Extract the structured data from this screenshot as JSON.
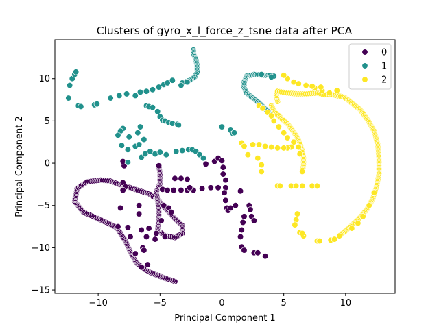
{
  "chart_data": {
    "type": "scatter",
    "title": "Clusters of gyro_x_l_force_z_tsne data after PCA",
    "xlabel": "Principal Component 1",
    "ylabel": "Principal Component 2",
    "xlim": [
      -13.5,
      14.0
    ],
    "ylim": [
      -15.4,
      14.6
    ],
    "xticks": [
      -10,
      -5,
      0,
      5,
      10
    ],
    "yticks": [
      -15,
      -10,
      -5,
      0,
      5,
      10
    ],
    "tick_labels_x": [
      "−10",
      "−5",
      "0",
      "5",
      "10"
    ],
    "tick_labels_y": [
      "−15",
      "−10",
      "−5",
      "0",
      "5",
      "10"
    ],
    "grid": false,
    "legend_position": "top-right",
    "series": [
      {
        "name": "0",
        "color": "#440154",
        "paths": [
          [
            [
              -3.8,
              -14.0
            ],
            [
              -4.8,
              -13.5
            ],
            [
              -6.0,
              -12.8
            ],
            [
              -6.9,
              -11.8
            ],
            [
              -7.4,
              -10.5
            ],
            [
              -7.8,
              -9.2
            ],
            [
              -8.5,
              -7.6
            ],
            [
              -9.8,
              -6.7
            ],
            [
              -11.2,
              -5.8
            ],
            [
              -11.9,
              -4.5
            ],
            [
              -11.7,
              -3.0
            ],
            [
              -10.9,
              -2.2
            ],
            [
              -9.8,
              -2.0
            ],
            [
              -9.0,
              -2.1
            ],
            [
              -8.3,
              -2.5
            ],
            [
              -7.6,
              -2.8
            ],
            [
              -6.8,
              -3.2
            ],
            [
              -5.9,
              -3.6
            ],
            [
              -5.2,
              -4.3
            ],
            [
              -4.6,
              -5.3
            ],
            [
              -3.9,
              -6.4
            ],
            [
              -3.2,
              -7.4
            ],
            [
              -3.2,
              -8.3
            ],
            [
              -3.8,
              -8.8
            ],
            [
              -4.6,
              -8.6
            ],
            [
              -5.2,
              -7.9
            ],
            [
              -5.1,
              -6.7
            ],
            [
              -5.1,
              -5.5
            ],
            [
              -5.2,
              -4.3
            ],
            [
              -5.3,
              -3.4
            ],
            [
              -5.0,
              -2.4
            ],
            [
              -5.0,
              -1.2
            ],
            [
              -5.1,
              -0.3
            ]
          ]
        ],
        "points": [
          [
            -8.0,
            -2.3
          ],
          [
            -7.8,
            -2.8
          ],
          [
            -8.0,
            -3.2
          ],
          [
            -7.9,
            -0.3
          ],
          [
            -8.0,
            0.2
          ],
          [
            -7.6,
            -7.6
          ],
          [
            -7.4,
            -8.7
          ],
          [
            -6.5,
            -7.9
          ],
          [
            -6.1,
            -8.7
          ],
          [
            -5.9,
            -7.7
          ],
          [
            -5.3,
            -8.3
          ],
          [
            -5.4,
            -9.0
          ],
          [
            -4.6,
            -8.7
          ],
          [
            -6.4,
            -10.0
          ],
          [
            -6.3,
            -10.3
          ],
          [
            -7.0,
            -10.7
          ],
          [
            -6.5,
            -12.3
          ],
          [
            -6.0,
            -12.0
          ],
          [
            -8.2,
            -5.3
          ],
          [
            -8.4,
            -7.5
          ],
          [
            -6.7,
            -5.0
          ],
          [
            -6.7,
            -6.0
          ],
          [
            -4.7,
            -5.0
          ],
          [
            -4.3,
            -5.3
          ],
          [
            -4.1,
            -5.8
          ],
          [
            -4.9,
            -6.8
          ],
          [
            -4.8,
            -3.1
          ],
          [
            -4.4,
            -3.2
          ],
          [
            -3.9,
            -3.2
          ],
          [
            -3.3,
            -3.2
          ],
          [
            -2.8,
            -3.2
          ],
          [
            -2.3,
            -3.2
          ],
          [
            -1.6,
            -3.0
          ],
          [
            -0.9,
            -2.9
          ],
          [
            -0.3,
            -2.9
          ],
          [
            0.3,
            -2.9
          ],
          [
            -3.8,
            -1.8
          ],
          [
            -3.3,
            -1.8
          ],
          [
            -2.8,
            -1.9
          ],
          [
            -2.6,
            -2.9
          ],
          [
            -1.3,
            -0.1
          ],
          [
            -0.6,
            0.2
          ],
          [
            -0.3,
            0.6
          ],
          [
            0.0,
            0.3
          ],
          [
            0.1,
            -0.5
          ],
          [
            0.1,
            -1.3
          ],
          [
            0.3,
            -2.0
          ],
          [
            0.2,
            -3.5
          ],
          [
            0.3,
            -4.4
          ],
          [
            0.4,
            -5.3
          ],
          [
            0.5,
            -5.6
          ],
          [
            0.7,
            -5.3
          ],
          [
            1.1,
            -5.0
          ],
          [
            1.5,
            -3.3
          ],
          [
            1.8,
            -6.3
          ],
          [
            1.7,
            -7.0
          ],
          [
            1.6,
            -7.9
          ],
          [
            1.5,
            -8.7
          ],
          [
            1.6,
            -9.9
          ],
          [
            1.8,
            -10.3
          ],
          [
            2.2,
            -5.0
          ],
          [
            2.3,
            -5.5
          ],
          [
            2.4,
            -6.3
          ],
          [
            2.6,
            -6.8
          ],
          [
            2.6,
            -10.6
          ],
          [
            2.9,
            -10.6
          ],
          [
            3.5,
            -11.0
          ]
        ]
      },
      {
        "name": "1",
        "color": "#21918c",
        "paths": [
          [
            [
              -2.3,
              13.4
            ],
            [
              -2.3,
              12.9
            ],
            [
              -2.1,
              12.3
            ],
            [
              -2.0,
              11.5
            ],
            [
              -2.0,
              10.7
            ],
            [
              -2.2,
              10.2
            ],
            [
              -2.6,
              9.8
            ],
            [
              -3.2,
              9.5
            ]
          ],
          [
            [
              3.5,
              10.4
            ],
            [
              2.6,
              10.5
            ],
            [
              2.0,
              10.3
            ],
            [
              1.8,
              9.6
            ],
            [
              1.8,
              8.9
            ],
            [
              2.0,
              8.3
            ],
            [
              2.6,
              7.6
            ],
            [
              3.1,
              7.0
            ],
            [
              3.5,
              6.4
            ],
            [
              3.9,
              6.0
            ]
          ]
        ],
        "points": [
          [
            -12.3,
            9.2
          ],
          [
            -12.1,
            10.0
          ],
          [
            -11.9,
            10.5
          ],
          [
            -11.8,
            10.8
          ],
          [
            -12.4,
            7.7
          ],
          [
            -11.6,
            6.8
          ],
          [
            -11.4,
            6.7
          ],
          [
            -10.3,
            6.9
          ],
          [
            -10.1,
            7.0
          ],
          [
            -9.0,
            7.7
          ],
          [
            -8.3,
            8.0
          ],
          [
            -7.7,
            8.2
          ],
          [
            -7.0,
            8.0
          ],
          [
            -6.6,
            8.4
          ],
          [
            -6.1,
            8.5
          ],
          [
            -5.6,
            8.7
          ],
          [
            -5.1,
            9.0
          ],
          [
            -4.7,
            9.3
          ],
          [
            -4.4,
            9.5
          ],
          [
            -4.0,
            9.8
          ],
          [
            -3.3,
            9.2
          ],
          [
            -2.8,
            9.6
          ],
          [
            -6.1,
            6.8
          ],
          [
            -5.9,
            6.7
          ],
          [
            -5.6,
            6.6
          ],
          [
            -5.2,
            6.1
          ],
          [
            -5.0,
            5.5
          ],
          [
            -4.8,
            5.1
          ],
          [
            -4.6,
            5.0
          ],
          [
            -4.3,
            4.8
          ],
          [
            -4.0,
            4.7
          ],
          [
            -3.6,
            4.6
          ],
          [
            -3.5,
            4.5
          ],
          [
            -6.6,
            4.3
          ],
          [
            -6.8,
            3.6
          ],
          [
            -7.5,
            3.1
          ],
          [
            -8.0,
            4.1
          ],
          [
            -8.2,
            3.8
          ],
          [
            -8.4,
            3.3
          ],
          [
            -8.1,
            2.1
          ],
          [
            -7.6,
            1.6
          ],
          [
            -7.0,
            2.0
          ],
          [
            -6.7,
            2.2
          ],
          [
            -6.3,
            2.8
          ],
          [
            -6.5,
            0.7
          ],
          [
            -6.2,
            1.1
          ],
          [
            -5.8,
            1.4
          ],
          [
            -5.4,
            1.1
          ],
          [
            -5.0,
            1.3
          ],
          [
            -4.5,
            1.0
          ],
          [
            -3.7,
            1.4
          ],
          [
            -3.2,
            1.5
          ],
          [
            -2.7,
            1.6
          ],
          [
            -2.4,
            1.6
          ],
          [
            -2.1,
            1.4
          ],
          [
            -1.8,
            1.0
          ],
          [
            -1.5,
            0.6
          ],
          [
            -7.6,
            0.1
          ],
          [
            0.0,
            4.3
          ],
          [
            0.7,
            3.9
          ],
          [
            0.9,
            3.5
          ],
          [
            1.0,
            3.6
          ],
          [
            3.9,
            10.4
          ],
          [
            4.2,
            10.3
          ],
          [
            4.0,
            10.2
          ],
          [
            3.2,
            10.5
          ]
        ]
      },
      {
        "name": "2",
        "color": "#fde725",
        "paths": [
          [
            [
              4.0,
              6.8
            ],
            [
              4.3,
              6.0
            ],
            [
              4.9,
              5.2
            ],
            [
              5.4,
              4.5
            ],
            [
              5.8,
              3.7
            ],
            [
              6.1,
              3.0
            ],
            [
              6.3,
              2.4
            ],
            [
              6.5,
              1.4
            ],
            [
              6.6,
              0.6
            ],
            [
              6.6,
              -0.2
            ],
            [
              6.5,
              -1.0
            ]
          ],
          [
            [
              4.5,
              7.3
            ],
            [
              4.4,
              8.0
            ],
            [
              4.5,
              8.5
            ],
            [
              5.3,
              8.3
            ],
            [
              6.1,
              8.2
            ],
            [
              6.9,
              8.2
            ],
            [
              7.7,
              8.3
            ],
            [
              8.3,
              8.1
            ],
            [
              9.0,
              8.1
            ],
            [
              9.9,
              7.8
            ],
            [
              10.6,
              7.0
            ],
            [
              11.2,
              6.3
            ],
            [
              11.8,
              5.1
            ],
            [
              12.3,
              3.8
            ],
            [
              12.6,
              2.2
            ],
            [
              12.7,
              0.4
            ],
            [
              12.7,
              -1.3
            ],
            [
              12.5,
              -2.8
            ],
            [
              12.2,
              -4.2
            ],
            [
              11.7,
              -5.5
            ],
            [
              11.0,
              -6.7
            ],
            [
              10.0,
              -8.0
            ],
            [
              9.5,
              -8.6
            ]
          ]
        ],
        "points": [
          [
            3.0,
            6.8
          ],
          [
            3.3,
            6.5
          ],
          [
            3.7,
            6.0
          ],
          [
            4.0,
            5.6
          ],
          [
            4.2,
            5.0
          ],
          [
            4.6,
            4.3
          ],
          [
            5.0,
            3.6
          ],
          [
            5.3,
            3.0
          ],
          [
            5.8,
            2.5
          ],
          [
            6.2,
            1.9
          ],
          [
            6.3,
            1.1
          ],
          [
            5.6,
            1.9
          ],
          [
            5.3,
            1.8
          ],
          [
            5.0,
            1.8
          ],
          [
            4.5,
            1.8
          ],
          [
            4.0,
            1.9
          ],
          [
            3.5,
            2.0
          ],
          [
            3.0,
            2.2
          ],
          [
            2.5,
            2.2
          ],
          [
            1.6,
            2.4
          ],
          [
            1.8,
            2.0
          ],
          [
            2.1,
            1.0
          ],
          [
            2.9,
            0.6
          ],
          [
            3.2,
            -0.2
          ],
          [
            3.2,
            -1.0
          ],
          [
            4.5,
            -2.7
          ],
          [
            4.7,
            -2.7
          ],
          [
            5.6,
            -2.7
          ],
          [
            6.0,
            -2.7
          ],
          [
            6.5,
            -2.7
          ],
          [
            7.3,
            -2.7
          ],
          [
            7.7,
            -2.7
          ],
          [
            6.1,
            -6.0
          ],
          [
            6.0,
            -6.7
          ],
          [
            5.9,
            -7.3
          ],
          [
            6.3,
            -8.2
          ],
          [
            6.6,
            -8.6
          ],
          [
            6.5,
            -8.3
          ],
          [
            7.7,
            -9.2
          ],
          [
            7.9,
            -9.2
          ],
          [
            8.8,
            -9.1
          ],
          [
            9.1,
            -9.0
          ],
          [
            10.5,
            -7.7
          ],
          [
            11.0,
            -7.1
          ],
          [
            11.4,
            -6.3
          ],
          [
            11.9,
            -5.0
          ],
          [
            12.3,
            -3.5
          ],
          [
            5.3,
            10.0
          ],
          [
            5.8,
            9.6
          ],
          [
            6.2,
            9.4
          ],
          [
            6.8,
            9.2
          ],
          [
            7.5,
            8.9
          ],
          [
            8.1,
            8.6
          ],
          [
            8.7,
            8.3
          ],
          [
            9.3,
            8.6
          ],
          [
            7.3,
            9.1
          ],
          [
            8.0,
            9.0
          ],
          [
            5.0,
            10.4
          ]
        ]
      }
    ]
  }
}
